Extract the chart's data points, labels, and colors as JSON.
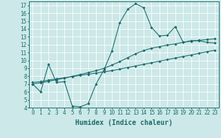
{
  "xlabel": "Humidex (Indice chaleur)",
  "bg_color": "#cce8e8",
  "line_color": "#1a6b6b",
  "grid_color": "#ffffff",
  "ylim": [
    4,
    17.5
  ],
  "xlim": [
    -0.5,
    23.5
  ],
  "yticks": [
    4,
    5,
    6,
    7,
    8,
    9,
    10,
    11,
    12,
    13,
    14,
    15,
    16,
    17
  ],
  "xticks": [
    0,
    1,
    2,
    3,
    4,
    5,
    6,
    7,
    8,
    9,
    10,
    11,
    12,
    13,
    14,
    15,
    16,
    17,
    18,
    19,
    20,
    21,
    22,
    23
  ],
  "curve1_x": [
    0,
    1,
    2,
    3,
    4,
    5,
    6,
    7,
    8,
    9,
    10,
    11,
    12,
    13,
    14,
    15,
    16,
    17,
    18,
    19,
    20,
    21,
    22,
    23
  ],
  "curve1_y": [
    7.0,
    6.0,
    9.5,
    7.2,
    7.3,
    4.2,
    4.1,
    4.5,
    7.0,
    8.8,
    11.2,
    14.8,
    16.5,
    17.2,
    16.7,
    14.2,
    13.1,
    13.2,
    14.3,
    12.3,
    12.5,
    12.5,
    12.3,
    12.2
  ],
  "curve2_x": [
    0,
    1,
    2,
    3,
    4,
    5,
    6,
    7,
    8,
    9,
    10,
    11,
    12,
    13,
    14,
    15,
    16,
    17,
    18,
    19,
    20,
    21,
    22,
    23
  ],
  "curve2_y": [
    7.2,
    7.3,
    7.5,
    7.65,
    7.8,
    7.95,
    8.1,
    8.25,
    8.4,
    8.55,
    8.7,
    8.9,
    9.1,
    9.3,
    9.5,
    9.7,
    9.9,
    10.1,
    10.3,
    10.5,
    10.7,
    10.9,
    11.1,
    11.3
  ],
  "curve3_x": [
    0,
    1,
    2,
    3,
    4,
    5,
    6,
    7,
    8,
    9,
    10,
    11,
    12,
    13,
    14,
    15,
    16,
    17,
    18,
    19,
    20,
    21,
    22,
    23
  ],
  "curve3_y": [
    7.0,
    7.15,
    7.35,
    7.55,
    7.75,
    7.98,
    8.2,
    8.45,
    8.7,
    9.0,
    9.4,
    9.85,
    10.35,
    10.85,
    11.25,
    11.55,
    11.75,
    11.95,
    12.1,
    12.3,
    12.45,
    12.55,
    12.65,
    12.75
  ],
  "marker": "D",
  "markersize": 1.8,
  "linewidth": 0.8,
  "tick_fontsize": 5.5,
  "label_fontsize": 7.0
}
